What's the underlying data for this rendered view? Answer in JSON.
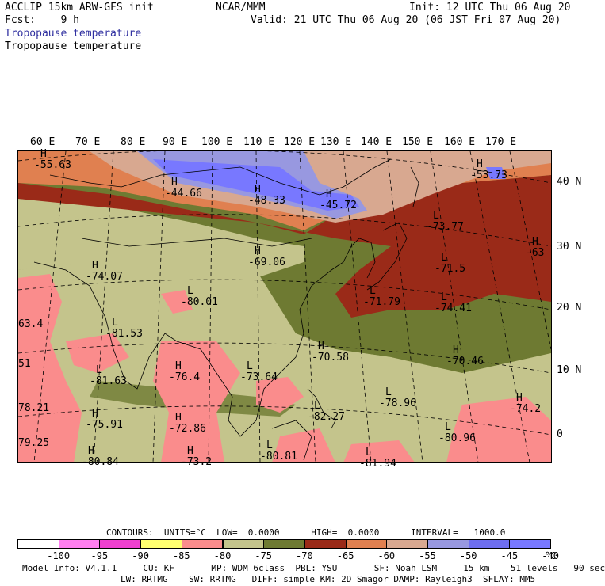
{
  "header": {
    "left_line1": "ACCLIP 15km ARW-GFS init",
    "left_line2": "Fcst:    9 h",
    "center": "NCAR/MMM",
    "right_line1": "Init: 12 UTC Thu 06 Aug 20",
    "right_line2": "Valid: 21 UTC Thu 06 Aug 20 (06 JST Fri 07 Aug 20)",
    "field_label_blue": "Tropopause temperature",
    "field_label_black": "Tropopause temperature"
  },
  "map": {
    "lon_labels": [
      "60 E",
      "70 E",
      "80 E",
      "90 E",
      "100 E",
      "110 E",
      "120 E",
      "130 E",
      "140 E",
      "150 E",
      "160 E",
      "170 E"
    ],
    "lat_labels": [
      "40 N",
      "30 N",
      "20 N",
      "10 N",
      "0"
    ],
    "extrema": [
      {
        "sym": "H",
        "value": "-55.63"
      },
      {
        "sym": "H",
        "value": "-44.66"
      },
      {
        "sym": "H",
        "value": "-48.33"
      },
      {
        "sym": "H",
        "value": "-45.72"
      },
      {
        "sym": "H",
        "value": "-53.73"
      },
      {
        "sym": "L",
        "value": "-73.77"
      },
      {
        "sym": "H",
        "value": "-69.06"
      },
      {
        "sym": "H",
        "value": "-74.07"
      },
      {
        "sym": "L",
        "value": "-80.01"
      },
      {
        "sym": "L",
        "value": "-71.5"
      },
      {
        "sym": "H",
        "value": "-63"
      },
      {
        "sym": "L",
        "value": "-71.79"
      },
      {
        "sym": "L",
        "value": "-74.41"
      },
      {
        "sym": "L",
        "value": "-81.53"
      },
      {
        "sym": "",
        "value": "63.4"
      },
      {
        "sym": "H",
        "value": "-70.58"
      },
      {
        "sym": "H",
        "value": "-70.46"
      },
      {
        "sym": "",
        "value": "51"
      },
      {
        "sym": "H",
        "value": "-76.4"
      },
      {
        "sym": "L",
        "value": "-81.63"
      },
      {
        "sym": "L",
        "value": "-73.64"
      },
      {
        "sym": "L",
        "value": "-78.96"
      },
      {
        "sym": "H",
        "value": "-74.2"
      },
      {
        "sym": "",
        "value": "78.21"
      },
      {
        "sym": "H",
        "value": "-75.91"
      },
      {
        "sym": "H",
        "value": "-72.86"
      },
      {
        "sym": "L",
        "value": "-82.27"
      },
      {
        "sym": "",
        "value": "79.25"
      },
      {
        "sym": "L",
        "value": "-80.96"
      },
      {
        "sym": "L",
        "value": "-80.81"
      },
      {
        "sym": "H",
        "value": "-73.2"
      },
      {
        "sym": "H",
        "value": "-80.84"
      },
      {
        "sym": "L",
        "value": "-81.94"
      }
    ]
  },
  "contours": {
    "line": "CONTOURS:  UNITS=°C  LOW=  0.0000      HIGH=  0.0000      INTERVAL=   1000.0"
  },
  "colorbar": {
    "colors": [
      "#ffffff",
      "#ff7ff0",
      "#f040d0",
      "#ffff70",
      "#fa8c8c",
      "#c4c48c",
      "#6e7a32",
      "#9a2a18",
      "#e08050",
      "#d8a890",
      "#9898e0",
      "#6e6ef0",
      "#7878ff"
    ],
    "labels": [
      "-100",
      "-95",
      "-90",
      "-85",
      "-80",
      "-75",
      "-70",
      "-65",
      "-60",
      "-55",
      "-50",
      "-45",
      "-40"
    ],
    "unit": "°C"
  },
  "model_info": {
    "line1": "Model Info: V4.1.1     CU: KF       MP: WDM 6class  PBL: YSU       SF: Noah LSM     15 km    51 levels   90 sec",
    "line2": "LW: RRTMG    SW: RRTMG   DIFF: simple KM: 2D Smagor DAMP: Rayleigh3  SFLAY: MM5"
  }
}
